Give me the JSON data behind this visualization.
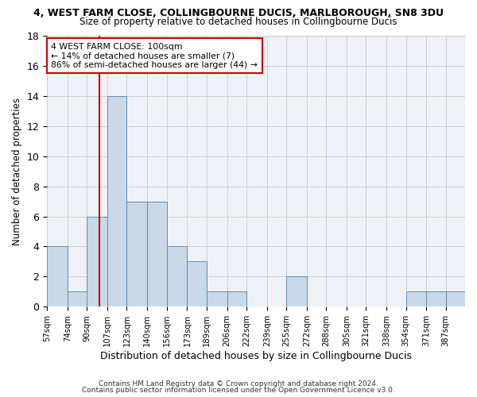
{
  "title": "4, WEST FARM CLOSE, COLLINGBOURNE DUCIS, MARLBOROUGH, SN8 3DU",
  "subtitle": "Size of property relative to detached houses in Collingbourne Ducis",
  "xlabel": "Distribution of detached houses by size in Collingbourne Ducis",
  "ylabel": "Number of detached properties",
  "footnote1": "Contains HM Land Registry data © Crown copyright and database right 2024.",
  "footnote2": "Contains public sector information licensed under the Open Government Licence v3.0.",
  "bar_edges": [
    57,
    74,
    90,
    107,
    123,
    140,
    156,
    173,
    189,
    206,
    222,
    239,
    255,
    272,
    288,
    305,
    321,
    338,
    354,
    371,
    387
  ],
  "bar_values": [
    4,
    1,
    6,
    14,
    7,
    7,
    4,
    3,
    1,
    1,
    0,
    0,
    2,
    0,
    0,
    0,
    0,
    0,
    1,
    1,
    1
  ],
  "bar_color": "#c9d9e8",
  "bar_edge_color": "#5b8db8",
  "grid_color": "#cccccc",
  "plot_bg_color": "#eef2f7",
  "fig_bg_color": "#ffffff",
  "vline_x": 100,
  "vline_color": "#cc0000",
  "annotation_line1": "4 WEST FARM CLOSE: 100sqm",
  "annotation_line2": "← 14% of detached houses are smaller (7)",
  "annotation_line3": "86% of semi-detached houses are larger (44) →",
  "annotation_box_color": "#ffffff",
  "annotation_box_edge": "#cc0000",
  "ylim": [
    0,
    18
  ],
  "yticks": [
    0,
    2,
    4,
    6,
    8,
    10,
    12,
    14,
    16,
    18
  ],
  "title_fontsize": 9,
  "subtitle_fontsize": 8.5,
  "ylabel_fontsize": 8.5,
  "xlabel_fontsize": 9,
  "footnote_fontsize": 6.5
}
